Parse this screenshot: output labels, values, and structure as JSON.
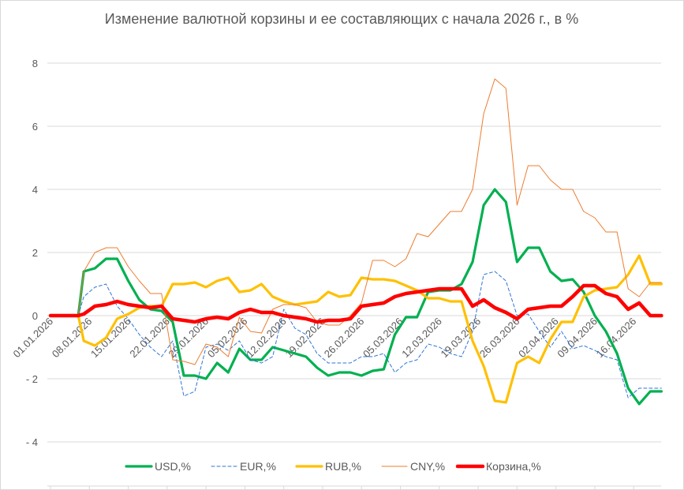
{
  "chart_data": {
    "type": "line",
    "title": "Изменение валютной корзины и ее составляющих с начала 2026 г., в %",
    "xlabel": "",
    "ylabel": "",
    "ylim": [
      -4,
      8
    ],
    "yticks": [
      8,
      6,
      4,
      2,
      0,
      -2,
      -4
    ],
    "ytick_labels": [
      "8",
      "6",
      "4",
      "2",
      "0",
      "- 2",
      "- 4"
    ],
    "grid": true,
    "legend": "bottom",
    "xtick_labels": [
      "01.01.2026",
      "08.01.2026",
      "15.01.2026",
      "22.01.2026",
      "29.01.2026",
      "05.02.2026",
      "12.02.2026",
      "19.02.2026",
      "26.02.2026",
      "05.03.2026",
      "12.03.2026",
      "19.03.2026",
      "26.03.2026",
      "02.04.2026",
      "09.04.2026",
      "16.04.2026"
    ],
    "x": [
      "01.01.2026",
      "06.01.2026",
      "07.01.2026",
      "09.01.2026",
      "11.01.2026",
      "13.01.2026",
      "15.01.2026",
      "17.01.2026",
      "19.01.2026",
      "21.01.2026",
      "23.01.2026",
      "25.01.2026",
      "27.01.2026",
      "29.01.2026",
      "31.01.2026",
      "02.02.2026",
      "04.02.2026",
      "06.02.2026",
      "08.02.2026",
      "10.02.2026",
      "12.02.2026",
      "14.02.2026",
      "16.02.2026",
      "18.02.2026",
      "20.02.2026",
      "22.02.2026",
      "24.02.2026",
      "26.02.2026",
      "28.02.2026",
      "02.03.2026",
      "04.03.2026",
      "06.03.2026",
      "08.03.2026",
      "10.03.2026",
      "12.03.2026",
      "14.03.2026",
      "16.03.2026",
      "18.03.2026",
      "20.03.2026",
      "22.03.2026",
      "24.03.2026",
      "26.03.2026",
      "28.03.2026",
      "30.03.2026",
      "01.04.2026",
      "03.04.2026",
      "05.04.2026",
      "07.04.2026",
      "09.04.2026",
      "11.04.2026",
      "13.04.2026",
      "15.04.2026",
      "17.04.2026",
      "19.04.2026",
      "21.04.2026"
    ],
    "series": [
      {
        "name": "USD,%",
        "color": "#00B050",
        "style": "solid",
        "values": [
          0,
          0,
          1.4,
          1.5,
          1.8,
          1.8,
          1.1,
          0.5,
          0.2,
          0.15,
          -0.2,
          -1.9,
          -1.9,
          -2.0,
          -1.5,
          -1.8,
          -1.05,
          -1.4,
          -1.4,
          -1.0,
          -1.1,
          -1.2,
          -1.3,
          -1.65,
          -1.9,
          -1.8,
          -1.8,
          -1.9,
          -1.75,
          -1.7,
          -0.6,
          -0.05,
          -0.05,
          0.75,
          0.8,
          0.8,
          1.0,
          1.7,
          3.5,
          4.0,
          3.6,
          1.7,
          2.15,
          2.15,
          1.4,
          1.1,
          1.15,
          0.75,
          0.0,
          -0.5,
          -1.2,
          -2.3,
          -2.8,
          -2.4,
          -2.4
        ]
      },
      {
        "name": "EUR,%",
        "color": "#2E75D6",
        "style": "dashed",
        "values": [
          0,
          0,
          0.6,
          0.9,
          1.0,
          0.3,
          -0.1,
          -0.6,
          -1.0,
          -1.3,
          -0.8,
          -2.55,
          -2.4,
          -1.0,
          -0.9,
          -1.1,
          -0.8,
          -1.4,
          -1.5,
          -1.3,
          0.2,
          -0.4,
          -0.6,
          -1.2,
          -1.5,
          -1.5,
          -1.5,
          -1.3,
          -1.3,
          -1.2,
          -1.8,
          -1.5,
          -1.4,
          -0.9,
          -1.0,
          -1.2,
          -1.3,
          -0.5,
          1.3,
          1.4,
          1.1,
          0.0,
          0.05,
          -0.5,
          -1.0,
          -0.5,
          -1.05,
          -0.95,
          -1.1,
          -1.3,
          -1.4,
          -2.6,
          -2.3,
          -2.3,
          -2.3
        ]
      },
      {
        "name": "RUB,%",
        "color": "#FFC000",
        "style": "solid",
        "values": [
          0,
          0,
          -0.8,
          -0.95,
          -0.7,
          -0.1,
          0.05,
          0.25,
          0.3,
          0.3,
          1.0,
          1.0,
          1.05,
          0.9,
          1.1,
          1.2,
          0.75,
          0.8,
          1.0,
          0.6,
          0.45,
          0.35,
          0.4,
          0.45,
          0.75,
          0.6,
          0.65,
          1.2,
          1.15,
          1.15,
          1.1,
          0.95,
          0.8,
          0.55,
          0.55,
          0.45,
          0.45,
          -0.8,
          -1.6,
          -2.7,
          -2.75,
          -1.5,
          -1.3,
          -1.5,
          -0.75,
          -0.2,
          -0.2,
          0.6,
          0.8,
          0.85,
          0.9,
          1.3,
          1.9,
          1.0,
          1.0
        ]
      },
      {
        "name": "CNY,%",
        "color": "#ED7D31",
        "style": "thin",
        "values": [
          0,
          0,
          1.4,
          2.0,
          2.15,
          2.15,
          1.55,
          1.1,
          0.7,
          0.7,
          -1.4,
          -1.45,
          -1.55,
          -0.9,
          -1.0,
          -1.3,
          -0.05,
          -0.5,
          -0.55,
          0.2,
          0.35,
          0.35,
          0.25,
          -0.2,
          -0.3,
          -0.3,
          0.0,
          0.4,
          1.75,
          1.75,
          1.55,
          1.8,
          2.6,
          2.5,
          2.9,
          3.3,
          3.3,
          4.0,
          6.4,
          7.5,
          7.2,
          3.5,
          4.75,
          4.75,
          4.3,
          4.0,
          4.0,
          3.3,
          3.1,
          2.65,
          2.65,
          0.85,
          0.6,
          1.05,
          1.05
        ]
      },
      {
        "name": "Корзина,%",
        "color": "#FF0000",
        "style": "bold",
        "values": [
          0,
          0,
          0.05,
          0.3,
          0.35,
          0.45,
          0.35,
          0.3,
          0.25,
          0.3,
          -0.1,
          -0.15,
          -0.2,
          -0.1,
          -0.05,
          -0.1,
          0.1,
          0.2,
          0.1,
          0.1,
          0.0,
          -0.05,
          -0.1,
          -0.2,
          -0.15,
          -0.15,
          -0.1,
          0.3,
          0.35,
          0.4,
          0.6,
          0.7,
          0.75,
          0.8,
          0.85,
          0.85,
          0.85,
          0.3,
          0.5,
          0.25,
          0.1,
          -0.1,
          0.2,
          0.25,
          0.3,
          0.3,
          0.6,
          0.95,
          0.95,
          0.7,
          0.6,
          0.2,
          0.4,
          0.0,
          0.0
        ]
      }
    ]
  }
}
